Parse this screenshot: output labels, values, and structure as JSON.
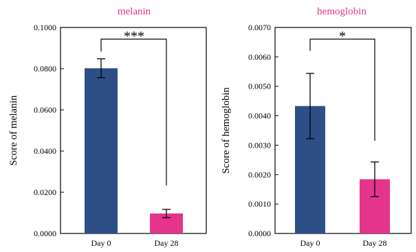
{
  "colors": {
    "day0": "#2e4f86",
    "day28": "#e4348b",
    "title": "#e4348b"
  },
  "chart_data": [
    {
      "type": "bar",
      "title": "melanin",
      "ylabel": "Score of melanin",
      "categories": [
        "Day 0",
        "Day 28"
      ],
      "values": [
        0.0802,
        0.0097
      ],
      "errors": [
        0.0046,
        0.002
      ],
      "ylim": [
        0,
        0.1
      ],
      "yticks": [
        "0.0000",
        "0.0200",
        "0.0400",
        "0.0600",
        "0.0800",
        "0.1000"
      ],
      "significance": "***",
      "grid": false
    },
    {
      "type": "bar",
      "title": "hemoglobin",
      "ylabel": "Score of hemoglobin",
      "categories": [
        "Day 0",
        "Day 28"
      ],
      "values": [
        0.00433,
        0.00184
      ],
      "errors": [
        0.00111,
        0.00059
      ],
      "ylim": [
        0,
        0.007
      ],
      "yticks": [
        "0.0000",
        "0.0010",
        "0.0020",
        "0.0030",
        "0.0040",
        "0.0050",
        "0.0060",
        "0.0070"
      ],
      "significance": "*",
      "grid": false
    }
  ]
}
